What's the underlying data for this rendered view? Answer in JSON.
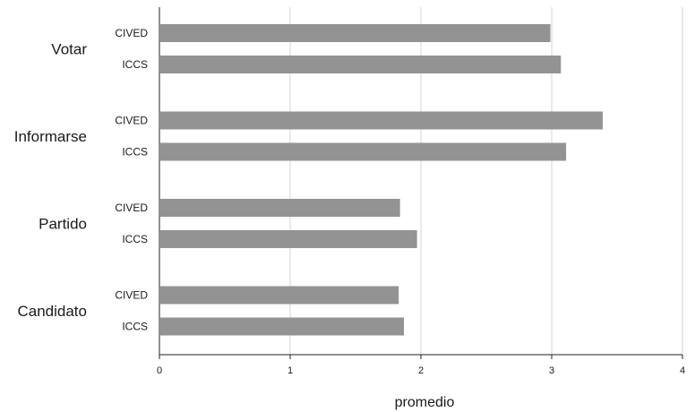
{
  "chart_data": {
    "type": "bar",
    "orientation": "horizontal",
    "xlabel": "promedio",
    "ylabel": "",
    "title": "",
    "xlim": [
      0,
      4
    ],
    "xticks": [
      0,
      1,
      2,
      3,
      4
    ],
    "grid": "vertical",
    "legend": "none",
    "bar_color": "#939393",
    "groups": [
      {
        "label": "Votar",
        "bars": [
          {
            "label": "CIVED",
            "value": 2.99
          },
          {
            "label": "ICCS",
            "value": 3.07
          }
        ]
      },
      {
        "label": "Informarse",
        "bars": [
          {
            "label": "CIVED",
            "value": 3.39
          },
          {
            "label": "ICCS",
            "value": 3.11
          }
        ]
      },
      {
        "label": "Partido",
        "bars": [
          {
            "label": "CIVED",
            "value": 1.84
          },
          {
            "label": "ICCS",
            "value": 1.97
          }
        ]
      },
      {
        "label": "Candidato",
        "bars": [
          {
            "label": "CIVED",
            "value": 1.83
          },
          {
            "label": "ICCS",
            "value": 1.87
          }
        ]
      }
    ]
  }
}
